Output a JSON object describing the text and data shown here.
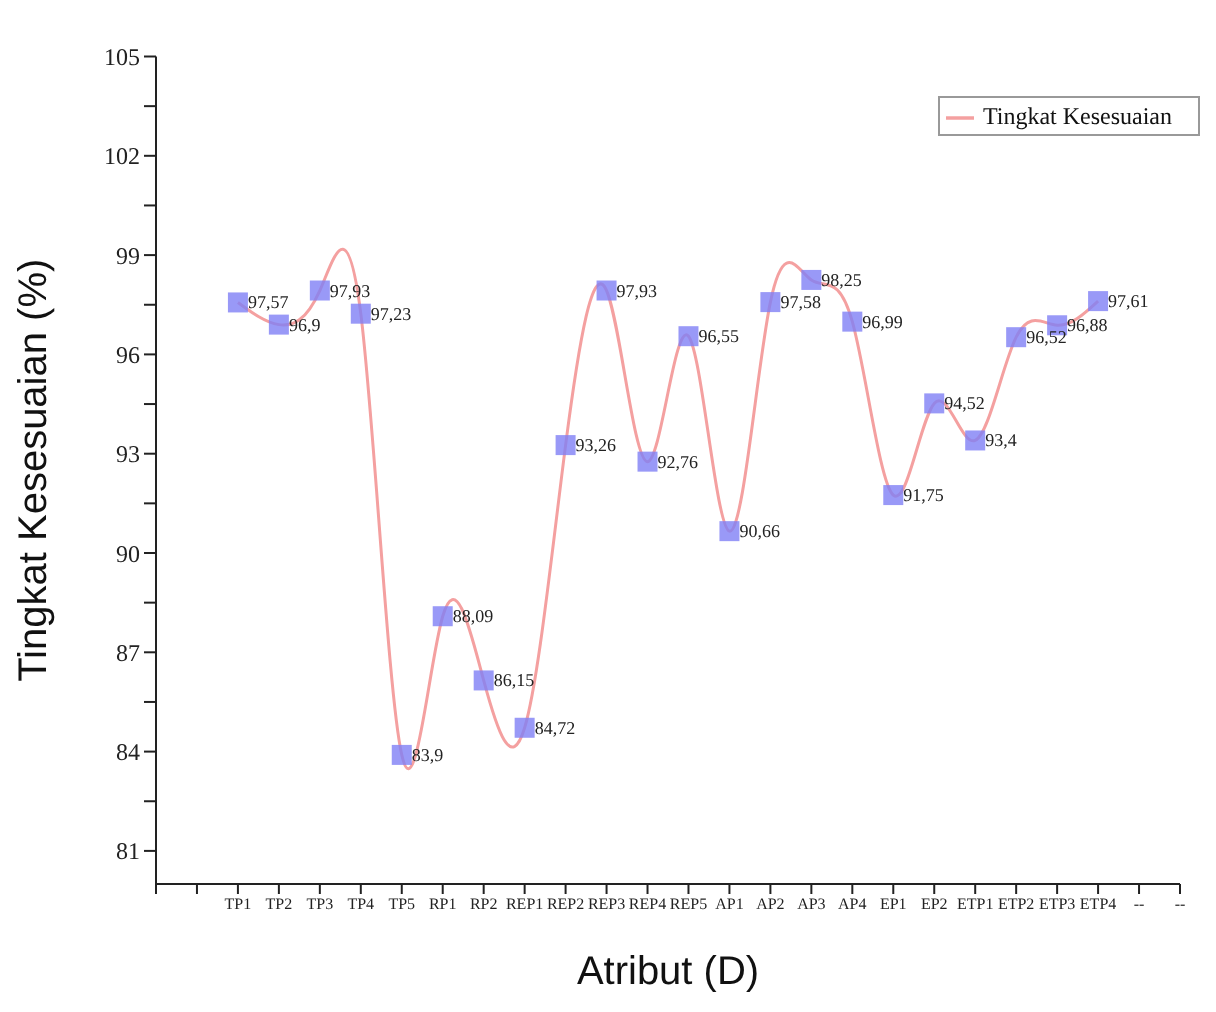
{
  "chart_data": {
    "type": "line",
    "xlabel": "Atribut (D)",
    "ylabel": "Tingkat Kesesuaian (%)",
    "categories": [
      null,
      null,
      "TP1",
      "TP2",
      "TP3",
      "TP4",
      "TP5",
      "RP1",
      "RP2",
      "REP1",
      "REP2",
      "REP3",
      "REP4",
      "REP5",
      "AP1",
      "AP2",
      "AP3",
      "AP4",
      "EP1",
      "EP2",
      "ETP1",
      "ETP2",
      "ETP3",
      "ETP4",
      "--",
      "--"
    ],
    "series": [
      {
        "name": "Tingkat Kesesuaian",
        "color": "#f4a0a0",
        "values": [
          null,
          null,
          97.57,
          96.9,
          97.93,
          97.23,
          83.9,
          88.09,
          86.15,
          84.72,
          93.26,
          97.93,
          92.76,
          96.55,
          90.66,
          97.58,
          98.25,
          96.99,
          91.75,
          94.52,
          93.4,
          96.52,
          96.88,
          97.61,
          null,
          null
        ],
        "value_labels": [
          null,
          null,
          "97,57",
          "96,9",
          "97,93",
          "97,23",
          "83,9",
          "88,09",
          "86,15",
          "84,72",
          "93,26",
          "97,93",
          "92,76",
          "96,55",
          "90,66",
          "97,58",
          "98,25",
          "96,99",
          "91,75",
          "94,52",
          "93,4",
          "96,52",
          "96,88",
          "97,61",
          null,
          null
        ]
      }
    ],
    "ylim": [
      80,
      105
    ],
    "yticks": [
      81,
      {
        "value": 82.5,
        "label": null
      },
      84,
      {
        "value": 85.5,
        "label": null
      },
      87,
      {
        "value": 88.5,
        "label": null
      },
      90,
      {
        "value": 91.5,
        "label": null
      },
      93,
      {
        "value": 94.5,
        "label": null
      },
      96,
      {
        "value": 97.5,
        "label": null
      },
      99,
      {
        "value": 100.5,
        "label": null
      },
      102,
      {
        "value": 103.5,
        "label": null
      },
      105
    ],
    "marker": "square",
    "legend": "top right",
    "grid": false
  }
}
